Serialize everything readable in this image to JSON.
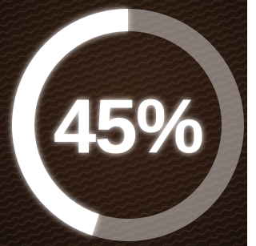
{
  "chart_data": {
    "type": "progress-ring",
    "value": 45,
    "value_label": "45%",
    "ylim": [
      0,
      100
    ],
    "color": "#ffffff",
    "track_color": "rgba(205,200,198,0.55)",
    "direction": "counterclockwise"
  }
}
